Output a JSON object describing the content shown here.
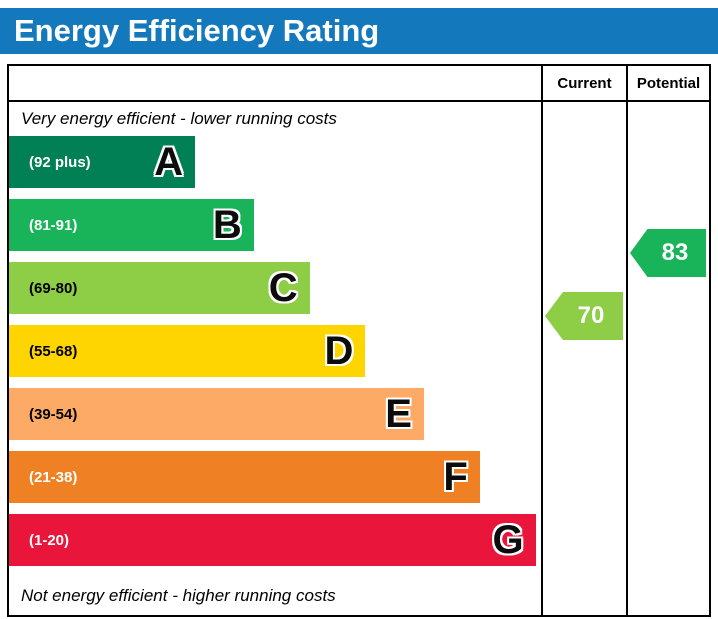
{
  "title": "Energy Efficiency Rating",
  "colors": {
    "title_bar": "#1479bc",
    "border": "#000000"
  },
  "header": {
    "current": "Current",
    "potential": "Potential"
  },
  "notes": {
    "top": "Very energy efficient - lower running costs",
    "bottom": "Not energy efficient - higher running costs"
  },
  "bands": [
    {
      "letter": "A",
      "range": "(92 plus)",
      "color": "#008054",
      "label_color": "#ffffff",
      "width_pct": 35
    },
    {
      "letter": "B",
      "range": "(81-91)",
      "color": "#19b459",
      "label_color": "#ffffff",
      "width_pct": 46
    },
    {
      "letter": "C",
      "range": "(69-80)",
      "color": "#8dce46",
      "label_color": "#000000",
      "width_pct": 56.5
    },
    {
      "letter": "D",
      "range": "(55-68)",
      "color": "#ffd500",
      "label_color": "#000000",
      "width_pct": 67
    },
    {
      "letter": "E",
      "range": "(39-54)",
      "color": "#fcaa65",
      "label_color": "#000000",
      "width_pct": 78
    },
    {
      "letter": "F",
      "range": "(21-38)",
      "color": "#ef8023",
      "label_color": "#ffffff",
      "width_pct": 88.5
    },
    {
      "letter": "G",
      "range": "(1-20)",
      "color": "#e9153b",
      "label_color": "#ffffff",
      "width_pct": 99
    }
  ],
  "ratings": {
    "current": {
      "value": "70",
      "band": "C",
      "color": "#8dce46"
    },
    "potential": {
      "value": "83",
      "band": "B",
      "color": "#19b459"
    }
  },
  "chart_data": {
    "type": "bar",
    "title": "Energy Efficiency Rating",
    "categories": [
      "A",
      "B",
      "C",
      "D",
      "E",
      "F",
      "G"
    ],
    "ranges": [
      "92 plus",
      "81-91",
      "69-80",
      "55-68",
      "39-54",
      "21-38",
      "1-20"
    ],
    "band_colors": [
      "#008054",
      "#19b459",
      "#8dce46",
      "#ffd500",
      "#fcaa65",
      "#ef8023",
      "#e9153b"
    ],
    "bar_widths_relative_pct": [
      35,
      46,
      56.5,
      67,
      78,
      88.5,
      99
    ],
    "current": 70,
    "current_band": "C",
    "potential": 83,
    "potential_band": "B",
    "column_headers": [
      "Current",
      "Potential"
    ],
    "annotations": [
      "Very energy efficient - lower running costs",
      "Not energy efficient - higher running costs"
    ],
    "grid": false,
    "legend_position": "none"
  }
}
